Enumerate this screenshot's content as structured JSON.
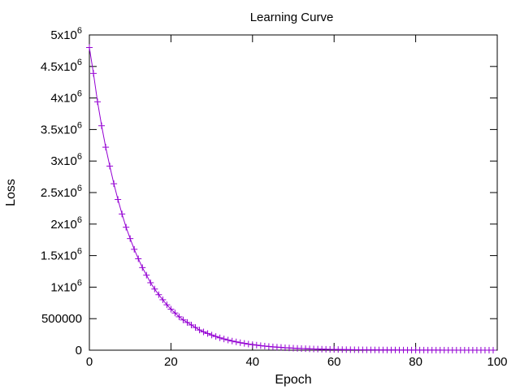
{
  "chart_data": {
    "type": "line",
    "title": "Learning Curve",
    "xlabel": "Epoch",
    "ylabel": "Loss",
    "xlim": [
      0,
      100
    ],
    "ylim": [
      0,
      5000000
    ],
    "x_ticks": [
      0,
      20,
      40,
      60,
      80,
      100
    ],
    "y_ticks": [
      {
        "value": 0,
        "base": "0",
        "exp": ""
      },
      {
        "value": 500000,
        "base": "500000",
        "exp": ""
      },
      {
        "value": 1000000,
        "base": "1x10",
        "exp": "6"
      },
      {
        "value": 1500000,
        "base": "1.5x10",
        "exp": "6"
      },
      {
        "value": 2000000,
        "base": "2x10",
        "exp": "6"
      },
      {
        "value": 2500000,
        "base": "2.5x10",
        "exp": "6"
      },
      {
        "value": 3000000,
        "base": "3x10",
        "exp": "6"
      },
      {
        "value": 3500000,
        "base": "3.5x10",
        "exp": "6"
      },
      {
        "value": 4000000,
        "base": "4x10",
        "exp": "6"
      },
      {
        "value": 4500000,
        "base": "4.5x10",
        "exp": "6"
      },
      {
        "value": 5000000,
        "base": "5x10",
        "exp": "6"
      }
    ],
    "grid": false,
    "legend": "none",
    "marker": "plus",
    "series": [
      {
        "color": "#9400d3",
        "x": [
          0,
          1,
          2,
          3,
          4,
          5,
          6,
          7,
          8,
          9,
          10,
          11,
          12,
          13,
          14,
          15,
          16,
          17,
          18,
          19,
          20,
          21,
          22,
          23,
          24,
          25,
          26,
          27,
          28,
          29,
          30,
          31,
          32,
          33,
          34,
          35,
          36,
          37,
          38,
          39,
          40,
          41,
          42,
          43,
          44,
          45,
          46,
          47,
          48,
          49,
          50,
          51,
          52,
          53,
          54,
          55,
          56,
          57,
          58,
          59,
          60,
          61,
          62,
          63,
          64,
          65,
          66,
          67,
          68,
          69,
          70,
          71,
          72,
          73,
          74,
          75,
          76,
          77,
          78,
          79,
          80,
          81,
          82,
          83,
          84,
          85,
          86,
          87,
          88,
          89,
          90,
          91,
          92,
          93,
          94,
          95,
          96,
          97,
          98,
          99
        ],
        "y": [
          4800000,
          4390000,
          3940000,
          3560000,
          3220000,
          2920000,
          2640000,
          2390000,
          2160000,
          1950000,
          1770000,
          1600000,
          1450000,
          1310000,
          1190000,
          1070000,
          970000,
          880000,
          800000,
          720000,
          650000,
          590000,
          530000,
          480000,
          440000,
          400000,
          360000,
          320000,
          290000,
          265000,
          240000,
          217000,
          196000,
          178000,
          161000,
          145000,
          132000,
          119000,
          108000,
          97000,
          88000,
          80000,
          72000,
          65000,
          59000,
          53000,
          48000,
          44000,
          39000,
          36000,
          32000,
          29000,
          26000,
          24000,
          21000,
          19000,
          17500,
          15800,
          14300,
          12900,
          11700,
          10600,
          9600,
          8700,
          7800,
          7100,
          6400,
          5800,
          5200,
          4700,
          4300,
          3900,
          3500,
          3200,
          2900,
          2600,
          2300,
          2100,
          1900,
          1700,
          1560,
          1410,
          1270,
          1150,
          1040,
          940,
          850,
          770,
          700,
          630,
          570,
          520,
          470,
          420,
          380,
          340,
          310,
          280,
          250,
          230
        ]
      }
    ]
  }
}
